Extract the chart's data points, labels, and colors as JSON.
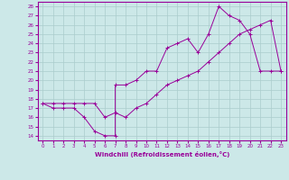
{
  "xlabel": "Windchill (Refroidissement éolien,°C)",
  "xlim": [
    -0.5,
    23.5
  ],
  "ylim": [
    13.5,
    28.5
  ],
  "xticks": [
    0,
    1,
    2,
    3,
    4,
    5,
    6,
    7,
    8,
    9,
    10,
    11,
    12,
    13,
    14,
    15,
    16,
    17,
    18,
    19,
    20,
    21,
    22,
    23
  ],
  "yticks": [
    14,
    15,
    16,
    17,
    18,
    19,
    20,
    21,
    22,
    23,
    24,
    25,
    26,
    27,
    28
  ],
  "bg_color": "#cce8e8",
  "line_color": "#990099",
  "grid_color": "#aacccc",
  "line1_x": [
    0,
    1,
    2,
    3,
    4,
    5,
    6,
    7,
    7,
    8,
    9,
    10,
    11,
    12,
    13,
    14,
    15,
    16,
    17,
    18,
    19,
    20,
    21,
    22,
    23
  ],
  "line1_y": [
    17.5,
    17,
    17,
    17,
    16,
    14.5,
    14,
    14,
    19.5,
    19.5,
    20,
    21,
    21,
    23.5,
    24,
    24.5,
    23,
    25,
    28,
    27,
    26.5,
    25,
    21,
    21,
    21
  ],
  "line2_x": [
    0,
    1,
    2,
    3,
    4,
    5,
    6,
    7,
    8,
    9,
    10,
    11,
    12,
    13,
    14,
    15,
    16,
    17,
    18,
    19,
    20,
    21,
    22,
    23
  ],
  "line2_y": [
    17.5,
    17.5,
    17.5,
    17.5,
    17.5,
    17.5,
    16,
    16.5,
    16,
    17,
    17.5,
    18.5,
    19.5,
    20,
    20.5,
    21,
    22,
    23,
    24,
    25,
    25.5,
    26,
    26.5,
    21
  ],
  "figsize": [
    3.2,
    2.0
  ],
  "dpi": 100
}
